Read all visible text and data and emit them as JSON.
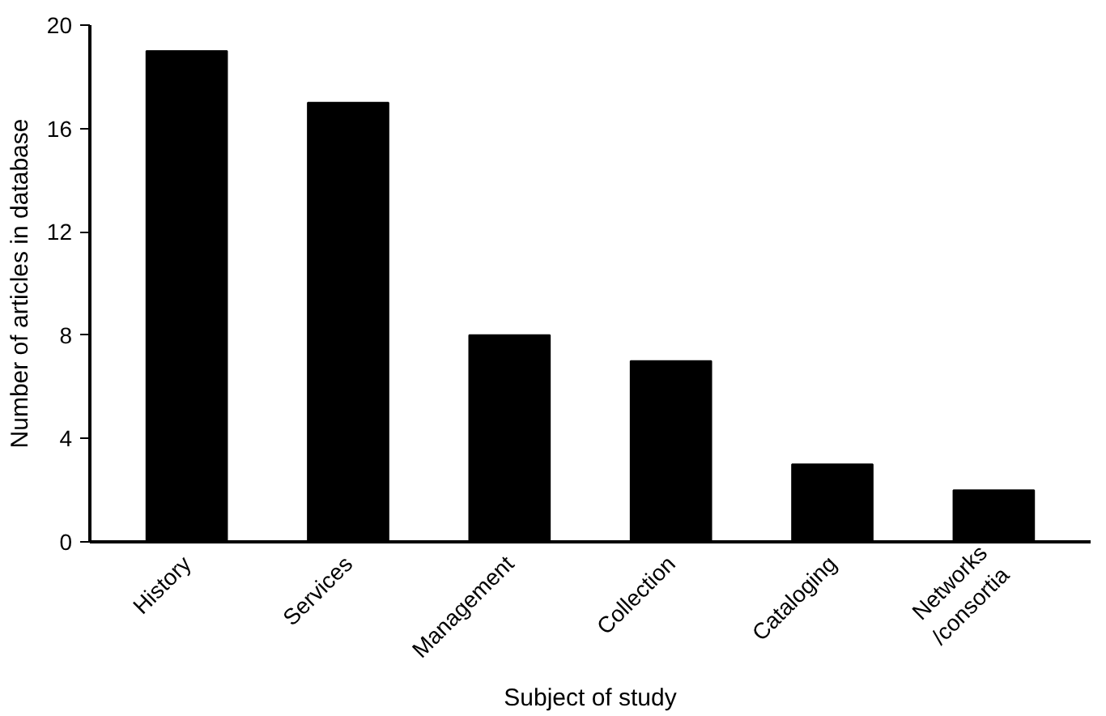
{
  "chart_data": {
    "type": "bar",
    "xlabel": "Subject of study",
    "ylabel": "Number of articles in database",
    "categories": [
      "History",
      "Services",
      "Management",
      "Collection",
      "Cataloging",
      "Networks\n/consortia"
    ],
    "values": [
      19,
      17,
      8,
      7,
      3,
      2
    ],
    "color": "#000000",
    "ylim": [
      0,
      20
    ],
    "yticks": [
      0,
      4,
      8,
      12,
      16,
      20
    ],
    "grid": false
  }
}
